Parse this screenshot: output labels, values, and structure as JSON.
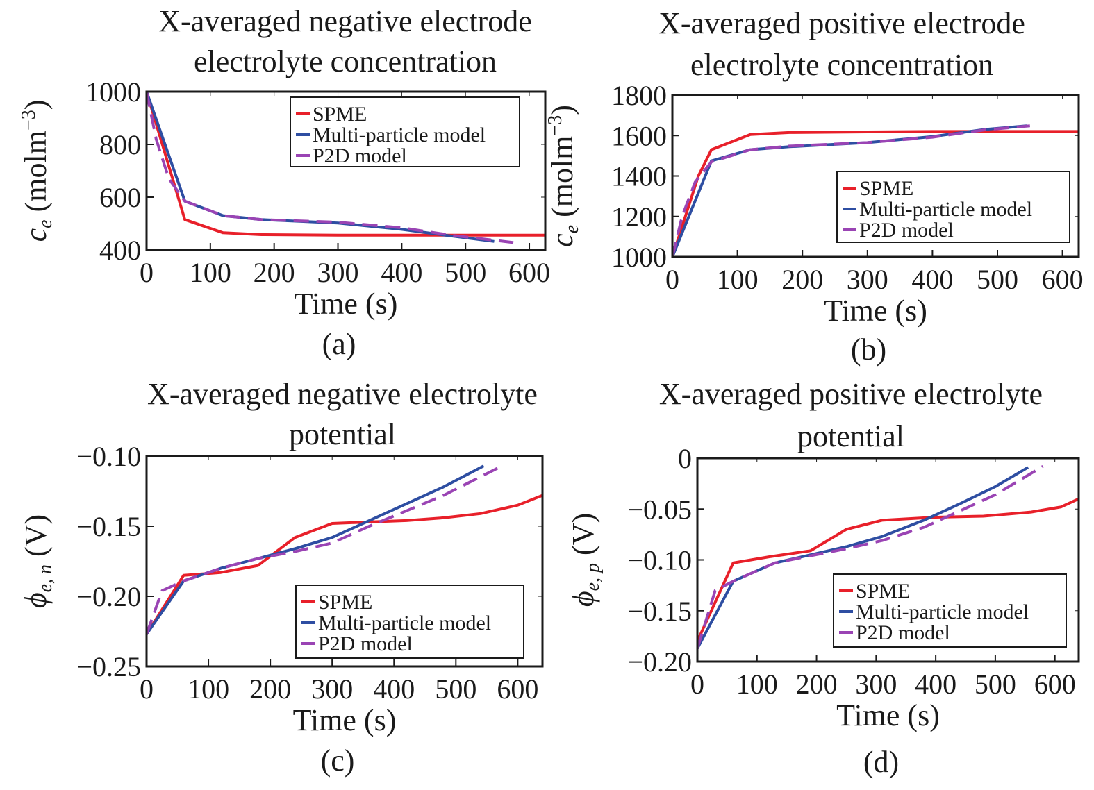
{
  "chart_data": [
    {
      "id": "a",
      "type": "line",
      "caption": "(a)",
      "title": [
        "X-averaged negative electrode",
        "electrolyte concentration"
      ],
      "xlabel": "Time (s)",
      "ylabel": "c_e (molm^-3)",
      "ylabel_parts": {
        "symbol": "c",
        "sub": "e",
        "unit": "(molm",
        "sup": "−3",
        "close": ")"
      },
      "xlim": [
        0,
        625
      ],
      "ylim": [
        400,
        1000
      ],
      "xticks": [
        0,
        100,
        200,
        300,
        400,
        500,
        600
      ],
      "yticks": [
        400,
        600,
        800,
        1000
      ],
      "ytick_labels": [
        "400",
        "600",
        "800",
        "1000"
      ],
      "legend_position": "top-right",
      "series": [
        {
          "name": "SPME",
          "color": "#e8202a",
          "dash": false,
          "x": [
            0,
            60,
            120,
            180,
            300,
            400,
            500,
            625
          ],
          "y": [
            1000,
            515,
            465,
            458,
            456,
            456,
            456,
            456
          ]
        },
        {
          "name": "Multi-particle model",
          "color": "#2e4ea2",
          "dash": false,
          "x": [
            0,
            60,
            120,
            180,
            300,
            400,
            480,
            545
          ],
          "y": [
            1000,
            585,
            530,
            515,
            502,
            478,
            452,
            432
          ]
        },
        {
          "name": "P2D model",
          "color": "#9a44b4",
          "dash": true,
          "x": [
            0,
            15,
            35,
            60,
            120,
            180,
            300,
            400,
            480,
            575
          ],
          "y": [
            1000,
            820,
            670,
            585,
            530,
            515,
            505,
            484,
            455,
            428
          ]
        }
      ]
    },
    {
      "id": "b",
      "type": "line",
      "caption": "(b)",
      "title": [
        "X-averaged positive electrode",
        "electrolyte concentration"
      ],
      "xlabel": "Time (s)",
      "ylabel": "c_e (molm^-3)",
      "ylabel_parts": {
        "symbol": "c",
        "sub": "e",
        "unit": "(molm",
        "sup": "−3",
        "close": ")"
      },
      "xlim": [
        0,
        625
      ],
      "ylim": [
        1000,
        1800
      ],
      "xticks": [
        0,
        100,
        200,
        300,
        400,
        500,
        600
      ],
      "yticks": [
        1000,
        1200,
        1400,
        1600,
        1800
      ],
      "ytick_labels": [
        "1000",
        "1200",
        "1400",
        "1600",
        "1800"
      ],
      "legend_position": "bottom-right",
      "series": [
        {
          "name": "SPME",
          "color": "#e8202a",
          "dash": false,
          "x": [
            0,
            40,
            60,
            120,
            180,
            300,
            400,
            625
          ],
          "y": [
            1000,
            1400,
            1530,
            1605,
            1615,
            1618,
            1620,
            1620
          ]
        },
        {
          "name": "Multi-particle model",
          "color": "#2e4ea2",
          "dash": false,
          "x": [
            0,
            60,
            120,
            180,
            300,
            400,
            480,
            545
          ],
          "y": [
            1000,
            1475,
            1530,
            1545,
            1565,
            1595,
            1630,
            1648
          ]
        },
        {
          "name": "P2D model",
          "color": "#9a44b4",
          "dash": true,
          "x": [
            0,
            15,
            35,
            60,
            120,
            180,
            300,
            400,
            480,
            550
          ],
          "y": [
            1000,
            1200,
            1370,
            1470,
            1530,
            1548,
            1565,
            1592,
            1628,
            1648
          ]
        }
      ]
    },
    {
      "id": "c",
      "type": "line",
      "caption": "(c)",
      "title": [
        "X-averaged negative electrolyte",
        "potential"
      ],
      "xlabel": "Time (s)",
      "ylabel": "phi_e,n (V)",
      "ylabel_parts": {
        "symbol": "ϕ",
        "sub": "e, n",
        "unit": "(V)",
        "sup": "",
        "close": ""
      },
      "xlim": [
        0,
        640
      ],
      "ylim": [
        -0.25,
        -0.1
      ],
      "xticks": [
        0,
        100,
        200,
        300,
        400,
        500,
        600
      ],
      "yticks": [
        -0.25,
        -0.2,
        -0.15,
        -0.1
      ],
      "ytick_labels": [
        "−0.25",
        "−0.20",
        "−0.15",
        "−0.10"
      ],
      "legend_position": "bottom-right",
      "series": [
        {
          "name": "SPME",
          "color": "#e8202a",
          "dash": false,
          "x": [
            0,
            60,
            120,
            180,
            240,
            300,
            360,
            420,
            480,
            540,
            600,
            640
          ],
          "y": [
            -0.227,
            -0.185,
            -0.183,
            -0.178,
            -0.158,
            -0.148,
            -0.147,
            -0.146,
            -0.144,
            -0.141,
            -0.135,
            -0.128
          ]
        },
        {
          "name": "Multi-particle model",
          "color": "#2e4ea2",
          "dash": false,
          "x": [
            0,
            60,
            120,
            180,
            240,
            300,
            360,
            420,
            480,
            545
          ],
          "y": [
            -0.227,
            -0.189,
            -0.18,
            -0.173,
            -0.166,
            -0.158,
            -0.146,
            -0.134,
            -0.122,
            -0.107
          ]
        },
        {
          "name": "P2D model",
          "color": "#9a44b4",
          "dash": true,
          "x": [
            0,
            25,
            60,
            120,
            180,
            240,
            300,
            360,
            420,
            480,
            570
          ],
          "y": [
            -0.227,
            -0.196,
            -0.189,
            -0.18,
            -0.173,
            -0.168,
            -0.162,
            -0.15,
            -0.139,
            -0.128,
            -0.108
          ]
        }
      ]
    },
    {
      "id": "d",
      "type": "line",
      "caption": "(d)",
      "title": [
        "X-averaged positive electrolyte",
        "potential"
      ],
      "xlabel": "Time (s)",
      "ylabel": "phi_e,p (V)",
      "ylabel_parts": {
        "symbol": "ϕ",
        "sub": "e, p",
        "unit": "(V)",
        "sup": "",
        "close": ""
      },
      "xlim": [
        0,
        640
      ],
      "ylim": [
        -0.2,
        0
      ],
      "xticks": [
        0,
        100,
        200,
        300,
        400,
        500,
        600
      ],
      "yticks": [
        -0.2,
        -0.15,
        -0.1,
        -0.05,
        0
      ],
      "ytick_labels": [
        "−0.20",
        "−0.15",
        "−0.10",
        "−0.05",
        "0"
      ],
      "legend_position": "bottom-right",
      "series": [
        {
          "name": "SPME",
          "color": "#e8202a",
          "dash": false,
          "x": [
            0,
            60,
            120,
            190,
            250,
            310,
            400,
            480,
            560,
            610,
            640
          ],
          "y": [
            -0.18,
            -0.103,
            -0.097,
            -0.091,
            -0.07,
            -0.061,
            -0.058,
            -0.057,
            -0.053,
            -0.048,
            -0.04
          ]
        },
        {
          "name": "Multi-particle model",
          "color": "#2e4ea2",
          "dash": false,
          "x": [
            0,
            60,
            130,
            190,
            250,
            310,
            380,
            440,
            500,
            555
          ],
          "y": [
            -0.187,
            -0.121,
            -0.103,
            -0.095,
            -0.087,
            -0.077,
            -0.061,
            -0.045,
            -0.028,
            -0.009
          ]
        },
        {
          "name": "P2D model",
          "color": "#9a44b4",
          "dash": true,
          "x": [
            0,
            30,
            60,
            130,
            190,
            250,
            310,
            380,
            440,
            500,
            580
          ],
          "y": [
            -0.187,
            -0.13,
            -0.121,
            -0.103,
            -0.096,
            -0.089,
            -0.081,
            -0.068,
            -0.052,
            -0.036,
            -0.008
          ]
        }
      ]
    }
  ]
}
